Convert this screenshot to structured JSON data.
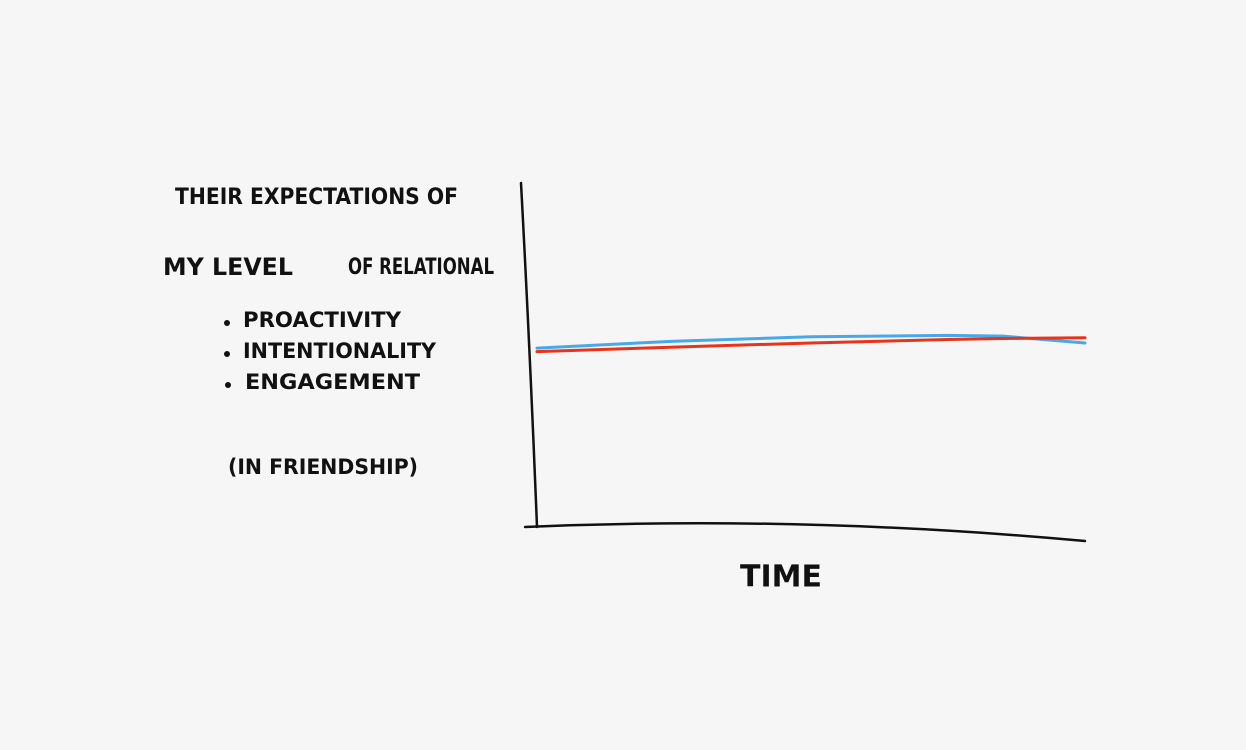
{
  "chart_data": {
    "type": "line",
    "series": [
      {
        "name": "THEIR EXPECTATIONS OF",
        "color": "#e8341c",
        "values": [
          51,
          52.3,
          53.5,
          54.5,
          54.8,
          55
        ]
      },
      {
        "name": "MY LEVEL",
        "color": "#4aa8e8",
        "values": [
          52,
          54,
          55.3,
          55.7,
          55.5,
          53.5
        ]
      }
    ],
    "x": [
      0,
      25,
      50,
      75,
      85,
      100
    ],
    "xlim": [
      0,
      100
    ],
    "ylim": [
      0,
      100
    ],
    "label_suffix": "OF RELATIONAL",
    "bullets": [
      "PROACTIVITY",
      "INTENTIONALITY",
      "ENGAGEMENT"
    ],
    "note": "(IN FRIENDSHIP)",
    "xlabel": "TIME"
  }
}
